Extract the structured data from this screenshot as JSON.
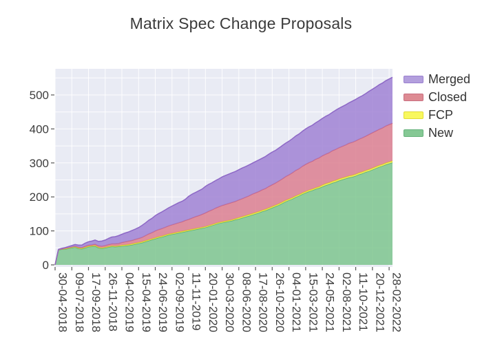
{
  "chart_data": {
    "type": "area",
    "stacked": true,
    "title": "Matrix Spec Change Proposals",
    "xlabel": "",
    "ylabel": "",
    "x_unit": "date, one sample every 2 weeks starting 30-04-2018",
    "x_tick_every_n_samples": 5,
    "x_tick_labels": [
      "30-04-2018",
      "09-07-2018",
      "17-09-2018",
      "26-11-2018",
      "04-02-2019",
      "15-04-2019",
      "24-06-2019",
      "02-09-2019",
      "11-11-2019",
      "20-01-2020",
      "30-03-2020",
      "08-06-2020",
      "17-08-2020",
      "26-10-2020",
      "04-01-2021",
      "15-03-2021",
      "24-05-2021",
      "02-08-2021",
      "11-10-2021",
      "20-12-2021",
      "28-02-2022"
    ],
    "y_ticks": [
      0,
      100,
      200,
      300,
      400,
      500
    ],
    "ylim": [
      0,
      577
    ],
    "grid": {
      "horizontal_step": 50,
      "vertical": "at each x tick",
      "color": "#ffffff"
    },
    "legend_position": "outside-top-right",
    "stack_order_bottom_to_top": [
      "New",
      "FCP",
      "Closed",
      "Merged"
    ],
    "series": [
      {
        "name": "New",
        "fill": "#7ec58e",
        "line": "#5bb078",
        "values": [
          0,
          44,
          46,
          46,
          48,
          50,
          52,
          48,
          47,
          50,
          53,
          54,
          55,
          50,
          48,
          50,
          52,
          54,
          53,
          54,
          55,
          56,
          57,
          59,
          61,
          63,
          65,
          68,
          71,
          74,
          77,
          80,
          82,
          85,
          88,
          90,
          92,
          94,
          96,
          98,
          100,
          102,
          104,
          106,
          108,
          110,
          113,
          116,
          119,
          122,
          124,
          126,
          128,
          130,
          133,
          135,
          138,
          141,
          144,
          147,
          150,
          153,
          157,
          160,
          164,
          168,
          172,
          176,
          181,
          186,
          190,
          194,
          199,
          203,
          208,
          212,
          216,
          219,
          223,
          226,
          230,
          234,
          237,
          241,
          244,
          248,
          251,
          254,
          257,
          259,
          262,
          266,
          269,
          273,
          276,
          280,
          284,
          288,
          291,
          295,
          298,
          301
        ]
      },
      {
        "name": "FCP",
        "fill": "#f2ee4e",
        "line": "#ddd51e",
        "values": [
          0,
          1,
          1,
          2,
          2,
          2,
          2,
          2,
          2,
          2,
          2,
          2,
          2,
          2,
          2,
          2,
          2,
          2,
          2,
          2,
          3,
          3,
          3,
          3,
          3,
          3,
          3,
          3,
          3,
          3,
          3,
          3,
          3,
          3,
          3,
          3,
          3,
          3,
          3,
          3,
          3,
          3,
          3,
          3,
          3,
          3,
          3,
          3,
          3,
          3,
          3,
          3,
          3,
          3,
          3,
          4,
          4,
          4,
          4,
          4,
          4,
          4,
          4,
          4,
          4,
          4,
          4,
          4,
          4,
          4,
          4,
          4,
          4,
          4,
          4,
          4,
          4,
          4,
          4,
          4,
          5,
          5,
          5,
          5,
          5,
          5,
          5,
          5,
          5,
          5,
          5,
          5,
          5,
          5,
          5,
          5,
          5,
          5,
          5,
          5,
          5,
          5
        ]
      },
      {
        "name": "Closed",
        "fill": "#dc7f8f",
        "line": "#cc6480",
        "values": [
          0,
          0,
          0,
          1,
          1,
          1,
          1,
          2,
          2,
          3,
          3,
          3,
          4,
          4,
          5,
          5,
          6,
          6,
          7,
          7,
          8,
          9,
          10,
          10,
          11,
          12,
          13,
          15,
          17,
          18,
          20,
          21,
          22,
          23,
          24,
          25,
          26,
          27,
          28,
          30,
          31,
          33,
          35,
          36,
          38,
          40,
          42,
          43,
          45,
          46,
          48,
          49,
          50,
          51,
          51,
          52,
          53,
          54,
          55,
          57,
          58,
          59,
          60,
          61,
          63,
          64,
          65,
          67,
          68,
          70,
          71,
          73,
          75,
          76,
          78,
          80,
          81,
          82,
          84,
          85,
          86,
          87,
          88,
          90,
          91,
          92,
          93,
          94,
          96,
          97,
          98,
          99,
          100,
          101,
          103,
          104,
          105,
          106,
          107,
          109,
          110,
          111
        ]
      },
      {
        "name": "Merged",
        "fill": "#a083d4",
        "line": "#8d68c6",
        "values": [
          0,
          1,
          2,
          2,
          3,
          4,
          5,
          6,
          7,
          9,
          10,
          11,
          12,
          13,
          15,
          16,
          18,
          20,
          21,
          23,
          24,
          26,
          27,
          29,
          30,
          32,
          35,
          37,
          40,
          42,
          45,
          47,
          49,
          51,
          53,
          55,
          57,
          59,
          60,
          62,
          68,
          70,
          71,
          73,
          74,
          78,
          79,
          80,
          81,
          82,
          84,
          85,
          86,
          87,
          88,
          89,
          90,
          90,
          91,
          91,
          92,
          93,
          93,
          94,
          95,
          96,
          96,
          97,
          98,
          98,
          99,
          100,
          101,
          102,
          103,
          104,
          105,
          106,
          107,
          109,
          110,
          111,
          112,
          113,
          115,
          116,
          117,
          118,
          119,
          121,
          122,
          123,
          124,
          125,
          127,
          128,
          129,
          131,
          132,
          133,
          134,
          135
        ]
      }
    ],
    "legend": [
      {
        "label": "Merged",
        "swatch": "#b39fdd",
        "border": "#9a80cf"
      },
      {
        "label": "Closed",
        "swatch": "#dd8b93",
        "border": "#c96e7f"
      },
      {
        "label": "FCP",
        "swatch": "#f8f85e",
        "border": "#e0dc35"
      },
      {
        "label": "New",
        "swatch": "#85c894",
        "border": "#66b37b"
      }
    ]
  },
  "colors": {
    "plot_background": "#e9ebf4",
    "gridline": "#ffffff",
    "tick_text": "#3d3d3d",
    "tick_mark": "#555555",
    "title_text": "#3b3b3b"
  }
}
